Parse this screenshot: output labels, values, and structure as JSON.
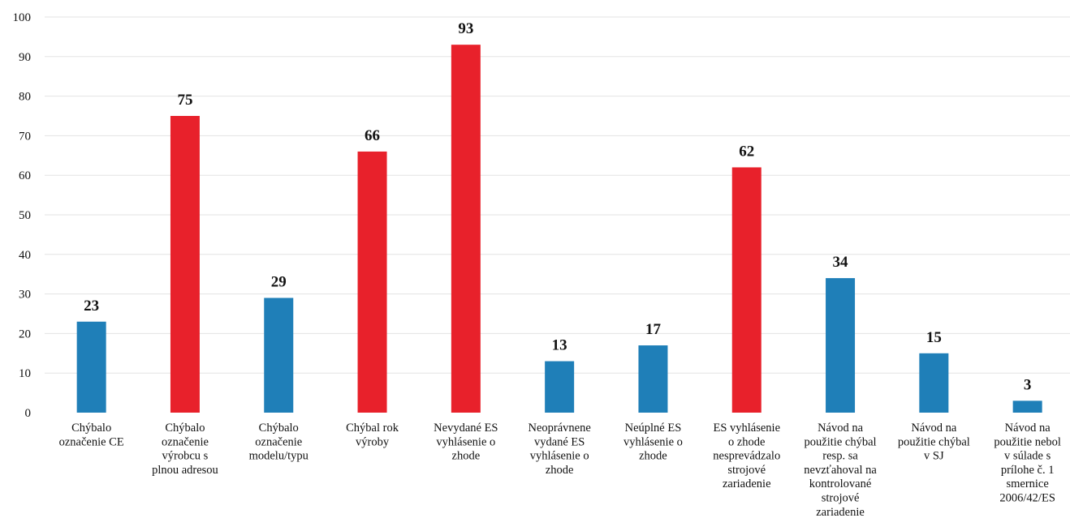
{
  "chart_data": {
    "type": "bar",
    "ylim": [
      0,
      100
    ],
    "yticks": [
      0,
      10,
      20,
      30,
      40,
      50,
      60,
      70,
      80,
      90,
      100
    ],
    "grid": true,
    "categories": [
      [
        "Chýbalo",
        "označenie CE"
      ],
      [
        "Chýbalo",
        "označenie",
        "výrobcu s",
        "plnou adresou"
      ],
      [
        "Chýbalo",
        "označenie",
        "modelu/typu"
      ],
      [
        "Chýbal rok",
        "výroby"
      ],
      [
        "Nevydané ES",
        "vyhlásenie o",
        "zhode"
      ],
      [
        "Neoprávnene",
        "vydané ES",
        "vyhlásenie o",
        "zhode"
      ],
      [
        "Neúplné ES",
        "vyhlásenie o",
        "zhode"
      ],
      [
        "ES vyhlásenie",
        "o zhode",
        "nesprevádzalo",
        "strojové",
        "zariadenie"
      ],
      [
        "Návod na",
        "použitie chýbal",
        "resp. sa",
        "nevzťahoval na",
        "kontrolované",
        "strojové",
        "zariadenie"
      ],
      [
        "Návod na",
        "použitie chýbal",
        "v SJ"
      ],
      [
        "Návod na",
        "použitie nebol",
        "v súlade s",
        "prílohe č. 1",
        "smernice",
        "2006/42/ES"
      ]
    ],
    "values": [
      23,
      75,
      29,
      66,
      93,
      13,
      17,
      62,
      34,
      15,
      3
    ],
    "bar_colors": [
      "#1f7fb8",
      "#e8212b",
      "#1f7fb8",
      "#e8212b",
      "#e8212b",
      "#1f7fb8",
      "#1f7fb8",
      "#e8212b",
      "#1f7fb8",
      "#1f7fb8",
      "#1f7fb8"
    ],
    "colors": {
      "blue": "#1f7fb8",
      "red": "#e8212b"
    }
  }
}
